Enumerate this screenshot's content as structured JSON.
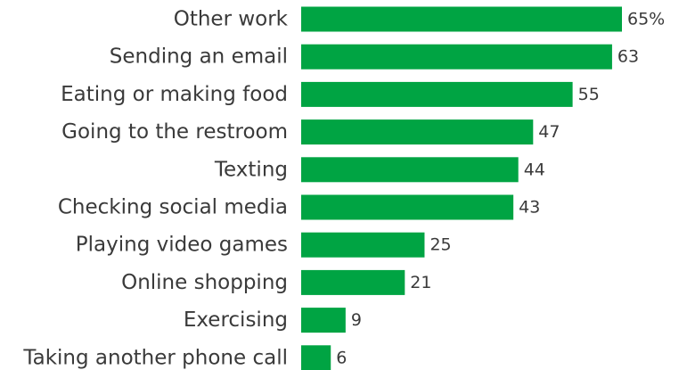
{
  "chart_data": {
    "type": "bar",
    "orientation": "horizontal",
    "categories": [
      "Other work",
      "Sending an email",
      "Eating or making food",
      "Going to the restroom",
      "Texting",
      "Checking social media",
      "Playing video games",
      "Online shopping",
      "Exercising",
      "Taking another phone call"
    ],
    "values": [
      65,
      63,
      55,
      47,
      44,
      43,
      25,
      21,
      9,
      6
    ],
    "value_labels": [
      "65%",
      "63",
      "55",
      "47",
      "44",
      "43",
      "25",
      "21",
      "9",
      "6"
    ],
    "title": "",
    "xlabel": "",
    "ylabel": "",
    "xlim": [
      0,
      65
    ],
    "grid": false,
    "legend": "none",
    "bar_color": "#00a443"
  }
}
